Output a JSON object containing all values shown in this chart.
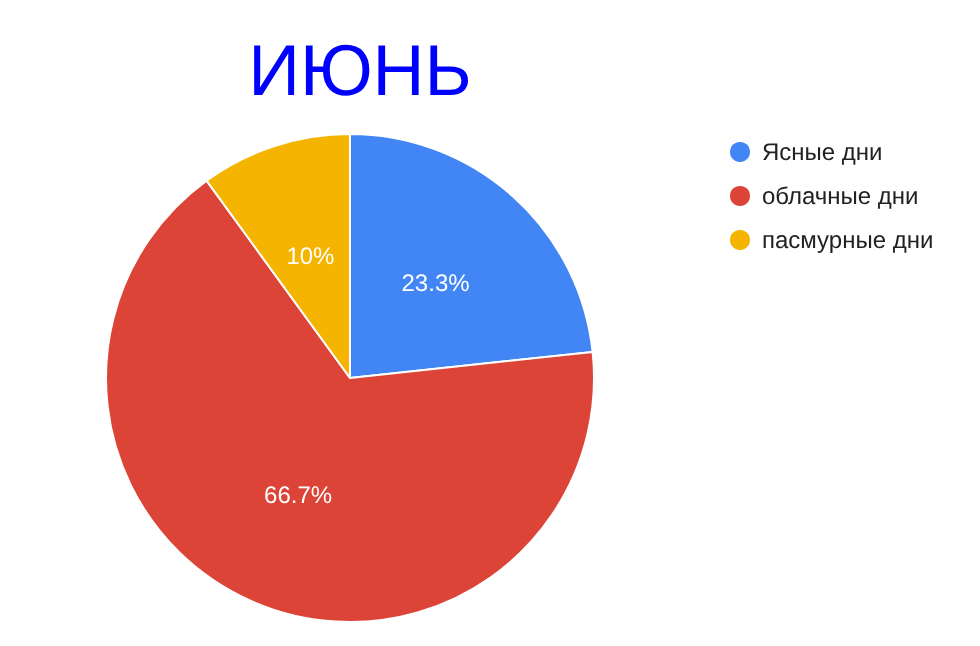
{
  "chart_data": {
    "type": "pie",
    "title": "ИЮНЬ",
    "categories": [
      "Ясные дни",
      "облачные дни",
      "пасмурные дни"
    ],
    "values": [
      23.3,
      66.7,
      10
    ],
    "colors": [
      "#4285f4",
      "#db4437",
      "#f4b400"
    ],
    "value_labels": [
      "23.3%",
      "66.7%",
      "10%"
    ],
    "legend": "top right"
  }
}
